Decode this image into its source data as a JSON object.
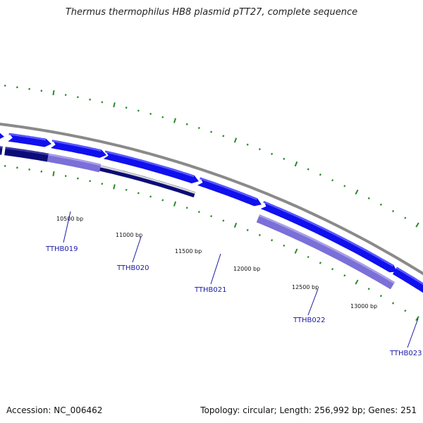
{
  "title": "Thermus thermophilus HB8 plasmid pTT27, complete sequence",
  "accession": "Accession: NC_006462",
  "topology": "Topology: circular; Length: 256,992 bp; Genes: 251",
  "colors": {
    "backbone": "#8a8a8a",
    "tick": "#2a8a2a",
    "gene_forward": "#1010ee",
    "gene_forward_light": "#5a5aff",
    "gene_reverse": "#7b6fd8",
    "gene_reverse_light": "#a79fea",
    "gene_dark": "#0c0c78",
    "gene_dark_light": "#3a3aa8",
    "label": "#1a1aa8"
  },
  "scale_labels": [
    {
      "bp": 10500,
      "text": "10500 bp"
    },
    {
      "bp": 11000,
      "text": "11000 bp"
    },
    {
      "bp": 11500,
      "text": "11500 bp"
    },
    {
      "bp": 12000,
      "text": "12000 bp"
    },
    {
      "bp": 12500,
      "text": "12500 bp"
    },
    {
      "bp": 13000,
      "text": "13000 bp"
    }
  ],
  "gene_labels": [
    {
      "id": "TTHB019",
      "text": "TTHB019"
    },
    {
      "id": "TTHB020",
      "text": "TTHB020"
    },
    {
      "id": "TTHB021",
      "text": "TTHB021"
    },
    {
      "id": "TTHB022",
      "text": "TTHB022"
    },
    {
      "id": "TTHB023",
      "text": "TTHB023"
    }
  ]
}
